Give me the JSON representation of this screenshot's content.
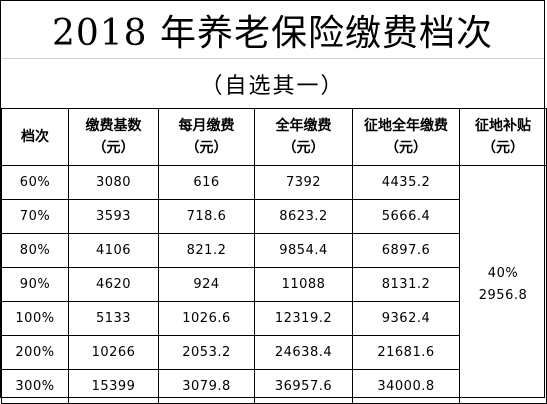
{
  "title": "2018 年养老保险缴费档次",
  "subtitle": "（自选其一）",
  "table": {
    "headers": [
      {
        "line1": "档次",
        "line2": ""
      },
      {
        "line1": "缴费基数",
        "line2": "（元）"
      },
      {
        "line1": "每月缴费",
        "line2": "（元）"
      },
      {
        "line1": "全年缴费",
        "line2": "（元）"
      },
      {
        "line1": "征地全年缴费",
        "line2": "（元）"
      },
      {
        "line1": "征地补贴",
        "line2": "（元）"
      }
    ],
    "rows": [
      {
        "level": "60%",
        "base": "3080",
        "monthly": "616",
        "annual": "7392",
        "land_annual": "4435.2"
      },
      {
        "level": "70%",
        "base": "3593",
        "monthly": "718.6",
        "annual": "8623.2",
        "land_annual": "5666.4"
      },
      {
        "level": "80%",
        "base": "4106",
        "monthly": "821.2",
        "annual": "9854.4",
        "land_annual": "6897.6"
      },
      {
        "level": "90%",
        "base": "4620",
        "monthly": "924",
        "annual": "11088",
        "land_annual": "8131.2"
      },
      {
        "level": "100%",
        "base": "5133",
        "monthly": "1026.6",
        "annual": "12319.2",
        "land_annual": "9362.4"
      },
      {
        "level": "200%",
        "base": "10266",
        "monthly": "2053.2",
        "annual": "24638.4",
        "land_annual": "21681.6"
      },
      {
        "level": "300%",
        "base": "15399",
        "monthly": "3079.8",
        "annual": "36957.6",
        "land_annual": "34000.8"
      }
    ],
    "subsidy": {
      "percent": "40%",
      "amount": "2956.8"
    }
  }
}
